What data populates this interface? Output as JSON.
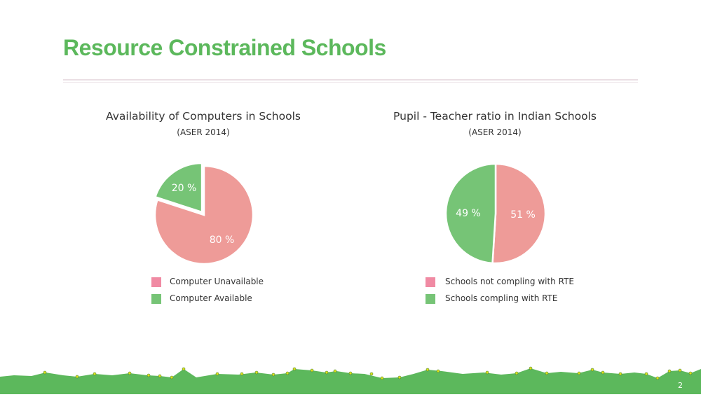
{
  "slide": {
    "title": "Resource Constrained Schools",
    "page_number": "2"
  },
  "colors": {
    "title": "#5cb85c",
    "footer_grass": "#5cb85c",
    "footer_dots": "#dde21c"
  },
  "chart_data": [
    {
      "type": "pie",
      "title": "Availability of  Computers in Schools",
      "subtitle": "(ASER 2014)",
      "legend_position": "bottom",
      "slices": [
        {
          "label": "Computer Unavailable",
          "value": 80,
          "display": "80 %",
          "color": "#ee9b98",
          "legend_color": "#f08aa3",
          "exploded": false
        },
        {
          "label": "Computer Available",
          "value": 20,
          "display": "20 %",
          "color": "#76c476",
          "legend_color": "#76c476",
          "exploded": true
        }
      ]
    },
    {
      "type": "pie",
      "title": "Pupil - Teacher ratio in Indian Schools",
      "subtitle": "(ASER 2014)",
      "legend_position": "bottom",
      "slices": [
        {
          "label": "Schools not compling with RTE",
          "value": 51,
          "display": "51 %",
          "color": "#ee9b98",
          "legend_color": "#f08aa3",
          "exploded": false
        },
        {
          "label": "Schools compling with RTE",
          "value": 49,
          "display": "49 %",
          "color": "#76c476",
          "legend_color": "#76c476",
          "exploded": false
        }
      ]
    }
  ]
}
